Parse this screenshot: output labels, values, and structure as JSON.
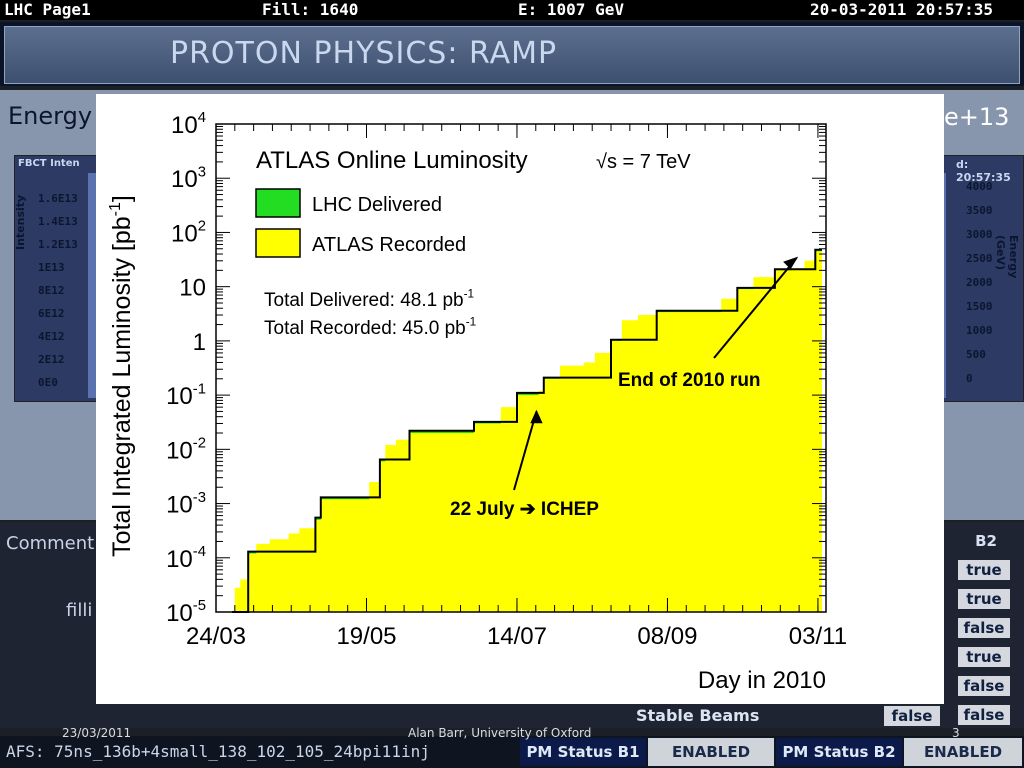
{
  "topbar": {
    "page": "LHC Page1",
    "fill": "Fill: 1640",
    "energy": "E:  1007 GeV",
    "datetime": "20-03-2011 20:57:35"
  },
  "banner": {
    "title": "PROTON PHYSICS: RAMP"
  },
  "background_panel": {
    "energy_label": "Energy",
    "right_value": "e+13",
    "fbct_label": "FBCT Inten",
    "time_label": "d: 20:57:35",
    "left_ticks": [
      "1.6E13",
      "1.4E13",
      "1.2E13",
      "1E13",
      "8E12",
      "6E12",
      "4E12",
      "2E12",
      "0E0"
    ],
    "left_axis": "Intensity",
    "right_ticks": [
      "4000",
      "3500",
      "3000",
      "2500",
      "2000",
      "1500",
      "1000",
      "500",
      "0"
    ],
    "right_axis": "Energy (GeV)"
  },
  "lower_panel": {
    "comment_label": "Comment",
    "filling_label": "filli",
    "b2_header": "B2",
    "b2_values": [
      "true",
      "true",
      "false",
      "true",
      "false",
      "false"
    ],
    "stable_beams_label": "Stable Beams",
    "stable_beams_b1": "false"
  },
  "bottombar": {
    "afs": "AFS: 75ns_136b+4small_138_102_105_24bpi11inj",
    "pm_b1_label": "PM Status B1",
    "pm_b1_value": "ENABLED",
    "pm_b2_label": "PM Status B2",
    "pm_b2_value": "ENABLED"
  },
  "footer": {
    "date": "23/03/2011",
    "author": "Alan Barr, University of Oxford",
    "page_number": "3"
  },
  "colors": {
    "delivered": "#22dd22",
    "recorded": "#ffff00",
    "outline": "#000000"
  },
  "chart_data": {
    "type": "area",
    "title": "ATLAS Online Luminosity",
    "energy_label_prefix": "√s",
    "energy_label_suffix": "= 7 TeV",
    "xlabel": "Day in 2010",
    "ylabel": "Total Integrated Luminosity [pb",
    "ylabel_unit_exp": "-1",
    "ylabel_close": "]",
    "y_scale": "log",
    "ylim": [
      1e-05,
      10000
    ],
    "xlim": [
      "2010-03-24",
      "2010-11-06"
    ],
    "x_tick_labels": [
      "24/03",
      "19/05",
      "14/07",
      "08/09",
      "03/11"
    ],
    "x_tick_dates": [
      "2010-03-24",
      "2010-05-19",
      "2010-07-14",
      "2010-09-08",
      "2010-11-03"
    ],
    "y_tick_labels": [
      {
        "base": "10",
        "exp": "4",
        "value": 10000
      },
      {
        "base": "10",
        "exp": "3",
        "value": 1000
      },
      {
        "base": "10",
        "exp": "2",
        "value": 100
      },
      {
        "base": "10",
        "exp": "",
        "value": 10
      },
      {
        "base": "1",
        "exp": "",
        "value": 1
      },
      {
        "base": "10",
        "exp": "-1",
        "value": 0.1
      },
      {
        "base": "10",
        "exp": "-2",
        "value": 0.01
      },
      {
        "base": "10",
        "exp": "-3",
        "value": 0.001
      },
      {
        "base": "10",
        "exp": "-4",
        "value": 0.0001
      },
      {
        "base": "10",
        "exp": "-5",
        "value": 1e-05
      }
    ],
    "legend": [
      {
        "name": "LHC Delivered",
        "color": "#22dd22"
      },
      {
        "name": "ATLAS Recorded",
        "color": "#ffff00"
      }
    ],
    "legend_position": "top-left",
    "totals": [
      {
        "label": "Total Delivered: 48.1 pb",
        "exp": "-1"
      },
      {
        "label": "Total Recorded: 45.0 pb",
        "exp": "-1"
      }
    ],
    "annotations": [
      {
        "text": "End of 2010 run",
        "date": "2010-10-29",
        "value": 40
      },
      {
        "text": "22 July ➔ ICHEP",
        "date": "2010-07-22",
        "value": 0.07
      }
    ],
    "series": [
      {
        "name": "ATLAS Recorded",
        "points": [
          [
            "2010-03-30",
            1e-05
          ],
          [
            "2010-03-31",
            2.8e-05
          ],
          [
            "2010-04-02",
            4e-05
          ],
          [
            "2010-04-05",
            0.00012
          ],
          [
            "2010-04-08",
            0.00018
          ],
          [
            "2010-04-13",
            0.00022
          ],
          [
            "2010-04-20",
            0.00028
          ],
          [
            "2010-04-24",
            0.00035
          ],
          [
            "2010-04-30",
            0.0005
          ],
          [
            "2010-05-02",
            0.0012
          ],
          [
            "2010-05-15",
            0.0012
          ],
          [
            "2010-05-20",
            0.0025
          ],
          [
            "2010-05-24",
            0.006
          ],
          [
            "2010-05-26",
            0.012
          ],
          [
            "2010-05-30",
            0.015
          ],
          [
            "2010-06-04",
            0.02
          ],
          [
            "2010-06-24",
            0.02
          ],
          [
            "2010-06-28",
            0.03
          ],
          [
            "2010-07-04",
            0.03
          ],
          [
            "2010-07-08",
            0.06
          ],
          [
            "2010-07-14",
            0.1
          ],
          [
            "2010-07-20",
            0.1
          ],
          [
            "2010-07-22",
            0.12
          ],
          [
            "2010-07-24",
            0.2
          ],
          [
            "2010-07-30",
            0.35
          ],
          [
            "2010-08-08",
            0.4
          ],
          [
            "2010-08-12",
            0.6
          ],
          [
            "2010-08-18",
            1.0
          ],
          [
            "2010-08-22",
            2.4
          ],
          [
            "2010-08-28",
            3.0
          ],
          [
            "2010-09-04",
            3.4
          ],
          [
            "2010-09-24",
            3.4
          ],
          [
            "2010-09-28",
            6.0
          ],
          [
            "2010-10-04",
            9.0
          ],
          [
            "2010-10-10",
            15.0
          ],
          [
            "2010-10-18",
            20.0
          ],
          [
            "2010-10-24",
            22.0
          ],
          [
            "2010-10-29",
            30.0
          ],
          [
            "2010-11-02",
            45.0
          ]
        ]
      },
      {
        "name": "LHC Delivered",
        "points": [
          [
            "2010-03-30",
            1e-05
          ],
          [
            "2010-04-05",
            0.00013
          ],
          [
            "2010-04-30",
            0.00055
          ],
          [
            "2010-05-02",
            0.0013
          ],
          [
            "2010-05-24",
            0.0065
          ],
          [
            "2010-06-04",
            0.022
          ],
          [
            "2010-06-28",
            0.032
          ],
          [
            "2010-07-14",
            0.11
          ],
          [
            "2010-07-24",
            0.21
          ],
          [
            "2010-08-18",
            1.05
          ],
          [
            "2010-09-04",
            3.6
          ],
          [
            "2010-10-04",
            9.5
          ],
          [
            "2010-10-18",
            21.0
          ],
          [
            "2010-11-02",
            48.1
          ]
        ]
      }
    ]
  }
}
